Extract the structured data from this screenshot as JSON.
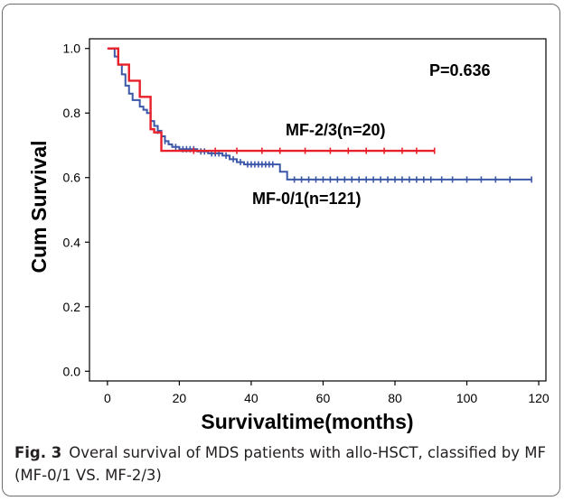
{
  "chart_data": {
    "type": "line",
    "subtype": "kaplan-meier",
    "xlabel": "Survivaltime(months)",
    "ylabel": "Cum Survival",
    "xlim": [
      -5,
      122
    ],
    "ylim": [
      -0.03,
      1.03
    ],
    "x_ticks": [
      "0",
      "20",
      "40",
      "60",
      "80",
      "100",
      "120"
    ],
    "y_ticks": [
      "0.0",
      "0.2",
      "0.4",
      "0.6",
      "0.8",
      "1.0"
    ],
    "annotation": "P=0.636",
    "grid": false,
    "series": [
      {
        "name": "MF-2/3(n=20)",
        "color": "#e8202a",
        "steps": [
          [
            0,
            1.0
          ],
          [
            3,
            0.95
          ],
          [
            6,
            0.9
          ],
          [
            9,
            0.85
          ],
          [
            12,
            0.75
          ],
          [
            13,
            0.74
          ],
          [
            15,
            0.683
          ],
          [
            91,
            0.683
          ]
        ],
        "censored_x": [
          24,
          30,
          36,
          43,
          48,
          55,
          62,
          67,
          72,
          77,
          82,
          86,
          91
        ]
      },
      {
        "name": "MF-0/1(n=121)",
        "color": "#3b57a7",
        "steps": [
          [
            0,
            1.0
          ],
          [
            2,
            0.975
          ],
          [
            3,
            0.95
          ],
          [
            4,
            0.92
          ],
          [
            5,
            0.885
          ],
          [
            6,
            0.86
          ],
          [
            7,
            0.84
          ],
          [
            9,
            0.82
          ],
          [
            10,
            0.81
          ],
          [
            11,
            0.8
          ],
          [
            12,
            0.775
          ],
          [
            13,
            0.76
          ],
          [
            14,
            0.745
          ],
          [
            15,
            0.728
          ],
          [
            16,
            0.713
          ],
          [
            17,
            0.703
          ],
          [
            18,
            0.695
          ],
          [
            20,
            0.688
          ],
          [
            25,
            0.681
          ],
          [
            28,
            0.675
          ],
          [
            32,
            0.668
          ],
          [
            34,
            0.657
          ],
          [
            36,
            0.648
          ],
          [
            38,
            0.641
          ],
          [
            48,
            0.618
          ],
          [
            50,
            0.594
          ],
          [
            118,
            0.594
          ]
        ],
        "censored_x": [
          14,
          16,
          19,
          21,
          22,
          23,
          24,
          26,
          27,
          29,
          30,
          31,
          33,
          35,
          37,
          39,
          40,
          41,
          42,
          43,
          44,
          45,
          46,
          52,
          54,
          56,
          58,
          60,
          62,
          64,
          66,
          68,
          70,
          72,
          74,
          76,
          78,
          80,
          82,
          84,
          86,
          88,
          90,
          93,
          96,
          100,
          104,
          108,
          112,
          118
        ]
      }
    ]
  },
  "caption": {
    "label": "Fig. 3",
    "text": "Overal survival of MDS patients with allo-HSCT, classified by MF (MF-0/1 VS. MF-2/3)"
  }
}
